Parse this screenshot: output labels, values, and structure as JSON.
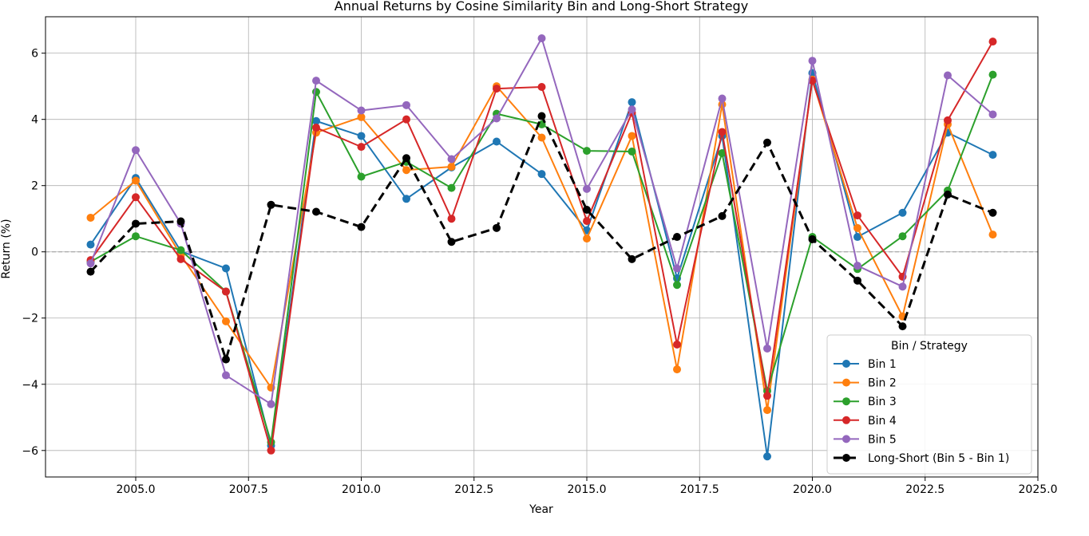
{
  "chart_data": {
    "type": "line",
    "title": "Annual Returns by Cosine Similarity Bin and Long-Short Strategy",
    "xlabel": "Year",
    "ylabel": "Return (%)",
    "xlim": [
      2003.0,
      2025.0
    ],
    "ylim": [
      -6.8,
      7.1
    ],
    "xticks": [
      2005.0,
      2007.5,
      2010.0,
      2012.5,
      2015.0,
      2017.5,
      2020.0,
      2022.5,
      2025.0
    ],
    "xtick_labels": [
      "2005.0",
      "2007.5",
      "2010.0",
      "2012.5",
      "2015.0",
      "2017.5",
      "2020.0",
      "2022.5",
      "2025.0"
    ],
    "yticks": [
      -6,
      -4,
      -2,
      0,
      2,
      4,
      6
    ],
    "ytick_labels": [
      "−6",
      "−4",
      "−2",
      "0",
      "2",
      "4",
      "6"
    ],
    "grid": true,
    "zero_line": true,
    "legend_title": "Bin / Strategy",
    "legend_position": "lower-right",
    "x": [
      2004,
      2005,
      2006,
      2007,
      2008,
      2009,
      2010,
      2011,
      2012,
      2013,
      2014,
      2015,
      2016,
      2017,
      2018,
      2019,
      2020,
      2021,
      2022,
      2023,
      2024
    ],
    "series": [
      {
        "name": "Bin 1",
        "color": "#1f77b4",
        "dashed": false,
        "values": [
          0.22,
          2.23,
          0.02,
          -0.5,
          -5.85,
          3.95,
          3.5,
          1.6,
          2.55,
          3.33,
          2.35,
          0.65,
          4.52,
          -0.8,
          3.5,
          -6.18,
          5.4,
          0.45,
          1.18,
          3.6,
          2.93
        ]
      },
      {
        "name": "Bin 2",
        "color": "#ff7f0e",
        "dashed": false,
        "values": [
          1.03,
          2.15,
          -0.1,
          -2.1,
          -4.1,
          3.6,
          4.07,
          2.47,
          2.57,
          5.0,
          3.45,
          0.4,
          3.5,
          -3.55,
          4.45,
          -4.78,
          5.2,
          0.72,
          -1.95,
          3.85,
          0.52
        ]
      },
      {
        "name": "Bin 3",
        "color": "#2ca02c",
        "dashed": false,
        "values": [
          -0.3,
          0.47,
          0.05,
          -1.2,
          -5.75,
          4.83,
          2.27,
          2.72,
          1.93,
          4.17,
          3.85,
          3.05,
          3.03,
          -1.0,
          2.98,
          -4.2,
          0.45,
          -0.52,
          0.47,
          1.85,
          5.35
        ]
      },
      {
        "name": "Bin 4",
        "color": "#d62728",
        "dashed": false,
        "values": [
          -0.25,
          1.65,
          -0.22,
          -1.2,
          -6.0,
          3.75,
          3.17,
          4.0,
          1.0,
          4.93,
          4.98,
          0.93,
          4.2,
          -2.8,
          3.62,
          -4.35,
          5.17,
          1.1,
          -0.75,
          3.97,
          6.35
        ]
      },
      {
        "name": "Bin 5",
        "color": "#9467bd",
        "dashed": false,
        "values": [
          -0.35,
          3.07,
          0.85,
          -3.73,
          -4.6,
          5.17,
          4.27,
          4.43,
          2.8,
          4.03,
          6.45,
          1.9,
          4.3,
          -0.5,
          4.63,
          -2.92,
          5.77,
          -0.42,
          -1.05,
          5.33,
          4.15
        ]
      },
      {
        "name": "Long-Short (Bin 5 - Bin 1)",
        "color": "#000000",
        "dashed": true,
        "values": [
          -0.6,
          0.85,
          0.92,
          -3.25,
          1.42,
          1.21,
          0.75,
          2.83,
          0.3,
          0.72,
          4.1,
          1.27,
          -0.22,
          0.45,
          1.08,
          3.3,
          0.38,
          -0.87,
          -2.25,
          1.73,
          1.18
        ]
      }
    ]
  }
}
